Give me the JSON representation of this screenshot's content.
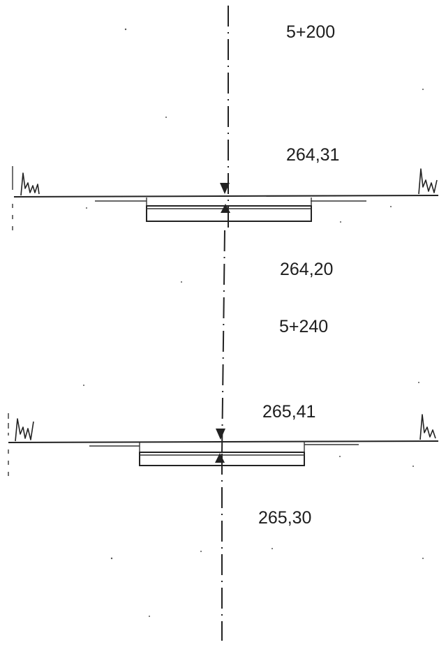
{
  "sections": [
    {
      "chainage": "5+200",
      "top_level": "264,31",
      "bottom_level": "264,20"
    },
    {
      "chainage": "5+240",
      "top_level": "265,41",
      "bottom_level": "265,30"
    }
  ],
  "symbols": {
    "grass": "grass-tuft-icon",
    "level_arrow_down": "arrow-down-icon",
    "level_arrow_up": "arrow-up-icon"
  },
  "colors": {
    "ink": "#222222",
    "paper": "#ffffff"
  }
}
